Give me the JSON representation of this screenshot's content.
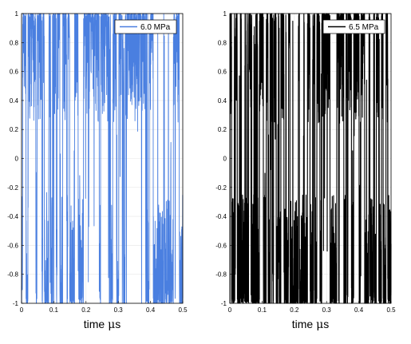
{
  "chart_data": [
    {
      "type": "line",
      "series": [
        {
          "name": "6.0 MPa",
          "color": "#4a7fe0"
        }
      ],
      "xlabel_parts": [
        "time ",
        "μ",
        "s"
      ],
      "xlim": [
        0,
        0.5
      ],
      "ylim": [
        -1,
        1
      ],
      "xticks": [
        "0",
        "0.1",
        "0.2",
        "0.3",
        "0.4",
        "0.5"
      ],
      "yticks": [
        "1",
        "0.8",
        "0.6",
        "0.4",
        "0.2",
        "0",
        "-0.2",
        "-0.4",
        "-0.6",
        "-0.8",
        "-1"
      ],
      "grid": true,
      "legend": "top-right"
    },
    {
      "type": "line",
      "series": [
        {
          "name": "6.5 MPa",
          "color": "#000000"
        }
      ],
      "xlabel_parts": [
        "time ",
        "μ",
        "s"
      ],
      "xlim": [
        0,
        0.5
      ],
      "ylim": [
        -1,
        1
      ],
      "xticks": [
        "0",
        "0.1",
        "0.2",
        "0.3",
        "0.4",
        "0.5"
      ],
      "yticks": [
        "1",
        "0.8",
        "0.6",
        "0.4",
        "0.2",
        "0",
        "-0.2",
        "-0.4",
        "-0.6",
        "-0.8",
        "-1"
      ],
      "grid": true,
      "legend": "top-right"
    }
  ]
}
